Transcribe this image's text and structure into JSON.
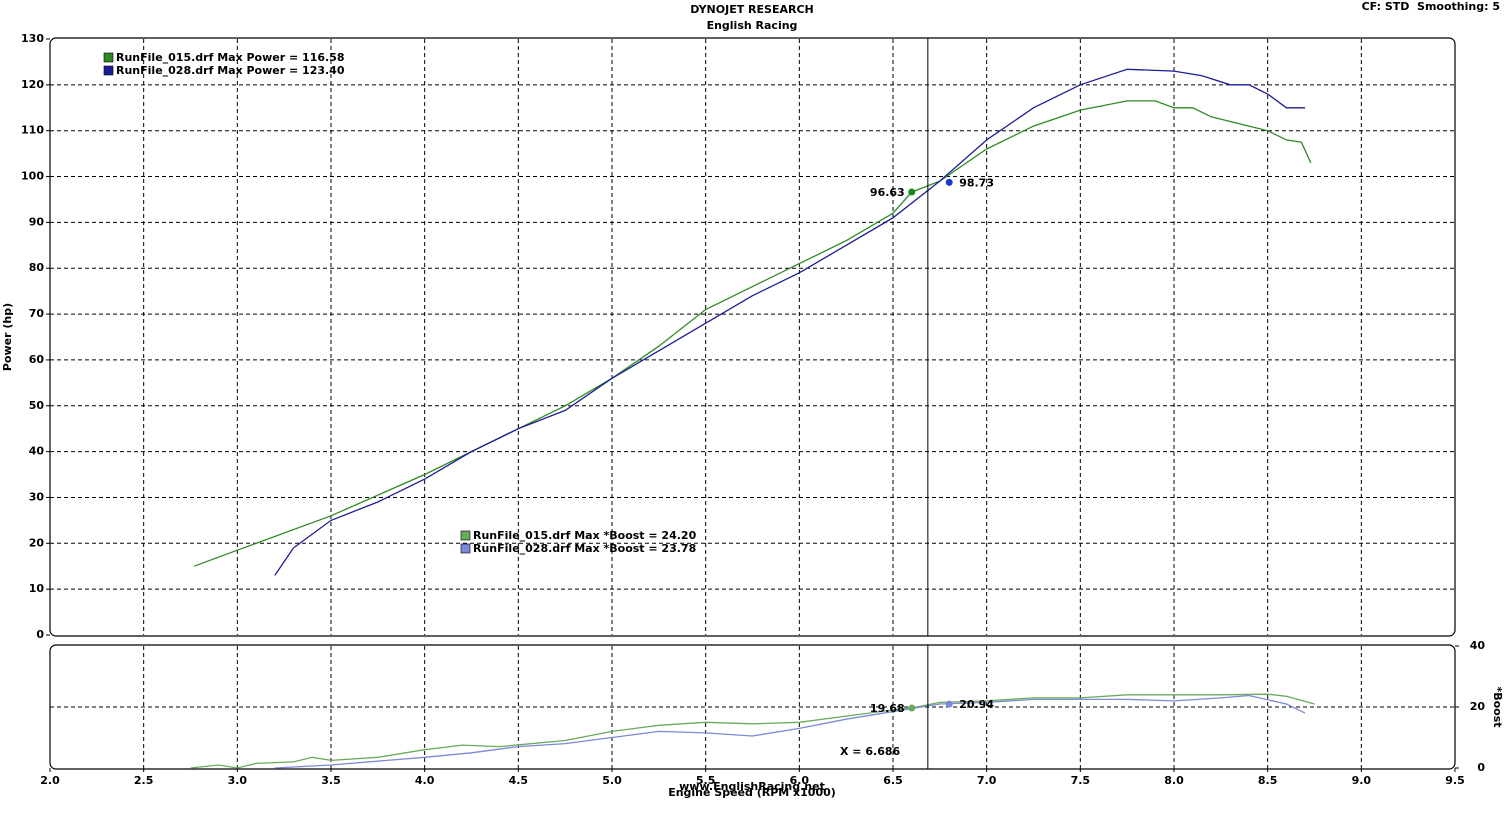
{
  "header": {
    "title": "DYNOJET RESEARCH",
    "subtitle": "English Racing",
    "settings": "CF: STD  Smoothing: 5",
    "footer": "www.EnglishRacing.net"
  },
  "chart_data": [
    {
      "type": "line",
      "y_label": "Power (hp)",
      "xlim": [
        2.0,
        9.5
      ],
      "xticks": [
        2,
        2.5,
        3,
        3.5,
        4,
        4.5,
        5,
        5.5,
        6,
        6.5,
        7,
        7.5,
        8,
        8.5,
        9,
        9.5
      ],
      "ylim": [
        0,
        130
      ],
      "yticks": [
        0,
        10,
        20,
        30,
        40,
        50,
        60,
        70,
        80,
        90,
        100,
        110,
        120,
        130
      ],
      "grid": true,
      "legend": [
        "RunFile_015.drf Max Power = 116.58",
        "RunFile_028.drf Max Power = 123.40"
      ],
      "cursor_x": 6.686,
      "series": [
        {
          "name": "RunFile_015.drf",
          "color": "#2f8a24",
          "x": [
            2.77,
            3.0,
            3.5,
            4.0,
            4.5,
            4.75,
            5.0,
            5.25,
            5.5,
            5.75,
            6.0,
            6.25,
            6.5,
            6.6,
            6.75,
            7.0,
            7.25,
            7.5,
            7.75,
            7.9,
            8.0,
            8.1,
            8.2,
            8.4,
            8.5,
            8.6,
            8.68,
            8.73
          ],
          "values": [
            15,
            18.5,
            26,
            35,
            45,
            50,
            56,
            63,
            71,
            76,
            81,
            86,
            92,
            96.6,
            99,
            106,
            111,
            114.5,
            116.5,
            116.5,
            115,
            115,
            113,
            111,
            110,
            108,
            107.5,
            103
          ]
        },
        {
          "name": "RunFile_028.drf",
          "color": "#1c1c96",
          "x": [
            3.2,
            3.3,
            3.5,
            3.75,
            4.0,
            4.25,
            4.5,
            4.75,
            5.0,
            5.25,
            5.5,
            5.75,
            6.0,
            6.25,
            6.5,
            6.75,
            7.0,
            7.25,
            7.5,
            7.75,
            8.0,
            8.15,
            8.3,
            8.4,
            8.5,
            8.6,
            8.7
          ],
          "values": [
            13,
            19,
            25,
            29,
            34,
            40,
            45,
            49,
            56,
            62,
            68,
            74,
            79,
            85,
            91,
            99,
            108,
            115,
            120,
            123.4,
            123,
            122,
            120,
            120,
            118,
            115,
            115
          ]
        }
      ],
      "markers": [
        {
          "x": 6.6,
          "y": 96.63,
          "color": "#1a8a1a"
        },
        {
          "x": 6.8,
          "y": 98.73,
          "color": "#1a3acc"
        }
      ]
    },
    {
      "type": "line",
      "x_label": "Engine Speed (RPM x1000)",
      "y_label": "*Boost",
      "xlim": [
        2.0,
        9.5
      ],
      "xticks": [
        {
          "value": 2,
          "label": "2.0"
        },
        {
          "value": 2.5,
          "label": "2.5"
        },
        {
          "value": 3,
          "label": "3.0"
        },
        {
          "value": 3.5,
          "label": "3.5"
        },
        {
          "value": 4,
          "label": "4.0"
        },
        {
          "value": 4.5,
          "label": "4.5"
        },
        {
          "value": 5,
          "label": "5.0"
        },
        {
          "value": 5.5,
          "label": "5.5"
        },
        {
          "value": 6,
          "label": "6.0"
        },
        {
          "value": 6.5,
          "label": "6.5"
        },
        {
          "value": 7,
          "label": "7.0"
        },
        {
          "value": 7.5,
          "label": "7.5"
        },
        {
          "value": 8,
          "label": "8.0"
        },
        {
          "value": 8.5,
          "label": "8.5"
        },
        {
          "value": 9,
          "label": "9.0"
        },
        {
          "value": 9.5,
          "label": "9.5"
        }
      ],
      "ylim": [
        0,
        40
      ],
      "yticks": [
        0,
        20,
        40
      ],
      "grid": true,
      "legend": [
        "RunFile_015.drf Max *Boost = 24.20",
        "RunFile_028.drf Max *Boost = 23.78"
      ],
      "cursor_x": 6.686,
      "cursor_label": "X = 6.686",
      "series": [
        {
          "name": "RunFile_015.drf",
          "color": "#6aaa5c",
          "x": [
            2.75,
            2.9,
            3.0,
            3.1,
            3.3,
            3.4,
            3.5,
            3.75,
            4.0,
            4.2,
            4.4,
            4.75,
            5.0,
            5.25,
            5.5,
            5.75,
            6.0,
            6.25,
            6.5,
            6.6,
            6.75,
            7.0,
            7.25,
            7.5,
            7.75,
            8.0,
            8.25,
            8.5,
            8.6,
            8.75
          ],
          "values": [
            0,
            1,
            0,
            1.5,
            2,
            3.5,
            2.5,
            3.5,
            6,
            7.5,
            7,
            9,
            12,
            14,
            15,
            14.5,
            15,
            17,
            19,
            19.68,
            21.5,
            22,
            23,
            23,
            24,
            24,
            24,
            24.2,
            23.5,
            21
          ]
        },
        {
          "name": "RunFile_028.drf",
          "color": "#7c88d8",
          "x": [
            3.2,
            3.5,
            4.0,
            4.25,
            4.5,
            4.75,
            5.0,
            5.25,
            5.5,
            5.75,
            6.0,
            6.25,
            6.5,
            6.75,
            7.0,
            7.25,
            7.5,
            7.75,
            8.0,
            8.25,
            8.4,
            8.6,
            8.7
          ],
          "values": [
            0,
            1,
            3.5,
            5,
            7,
            8,
            10,
            12,
            11.5,
            10.5,
            13,
            16,
            18.5,
            21,
            21.5,
            22.5,
            22.5,
            22.5,
            22,
            23,
            23.78,
            21,
            18
          ]
        }
      ],
      "markers": [
        {
          "x": 6.6,
          "y": 19.68,
          "color": "#6aaa5c"
        },
        {
          "x": 6.8,
          "y": 20.94,
          "color": "#7c88d8"
        }
      ]
    }
  ]
}
